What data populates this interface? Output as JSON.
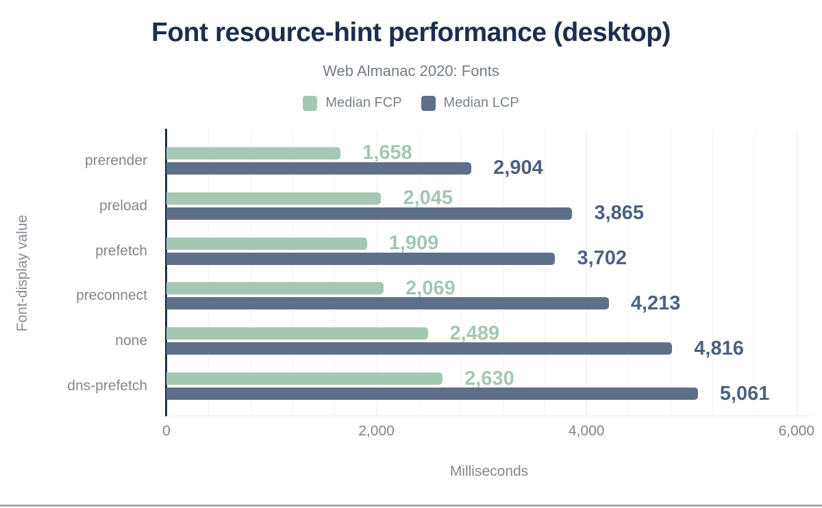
{
  "header": {
    "title": "Font resource-hint performance (desktop)",
    "subtitle": "Web Almanac 2020: Fonts"
  },
  "axes": {
    "x_title": "Milliseconds",
    "y_title": "Font-display value"
  },
  "chart_data": {
    "type": "bar",
    "orientation": "horizontal",
    "title": "Font resource-hint performance (desktop)",
    "subtitle": "Web Almanac 2020: Fonts",
    "xlabel": "Milliseconds",
    "ylabel": "Font-display value",
    "categories": [
      "prerender",
      "preload",
      "prefetch",
      "preconnect",
      "none",
      "dns-prefetch"
    ],
    "series": [
      {
        "name": "Median FCP",
        "color": "#a5c8b5",
        "label_color": "#a3c7b3",
        "values": [
          1658,
          2045,
          1909,
          2069,
          2489,
          2630
        ],
        "labels": [
          "1,658",
          "2,045",
          "1,909",
          "2,069",
          "2,489",
          "2,630"
        ]
      },
      {
        "name": "Median LCP",
        "color": "#5e7089",
        "label_color": "#4d6180",
        "values": [
          2904,
          3865,
          3702,
          4213,
          4816,
          5061
        ],
        "labels": [
          "2,904",
          "3,865",
          "3,702",
          "4,213",
          "4,816",
          "5,061"
        ]
      }
    ],
    "xlim": [
      0,
      6000
    ],
    "x_render_max": 6145,
    "x_ticks": [
      0,
      2000,
      4000,
      6000
    ],
    "x_tick_labels": [
      "0",
      "2,000",
      "4,000",
      "6,000"
    ],
    "grid_minor_step": 400,
    "grid_major_step": 2000,
    "grid": true,
    "legend_position": "top"
  },
  "colors": {
    "title_navy": "#1e2d4b",
    "axis_line": "#1e2d4b",
    "fcp_green": "#a5c8b5",
    "lcp_blue": "#5e7089",
    "text_gray": "#82868e"
  }
}
